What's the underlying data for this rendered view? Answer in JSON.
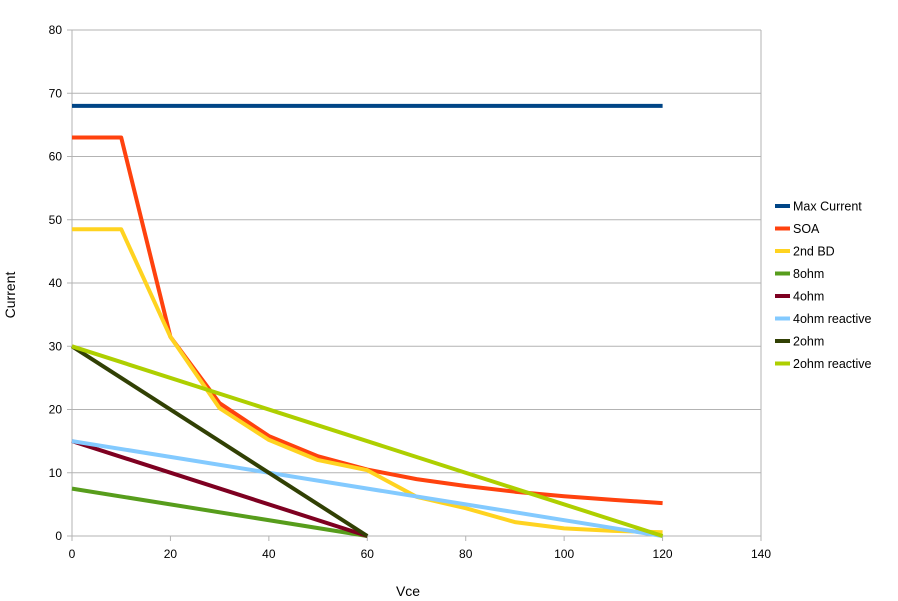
{
  "chart_data": {
    "type": "line",
    "title": "",
    "xlabel": "Vce",
    "ylabel": "Current",
    "xlim": [
      0,
      140
    ],
    "ylim": [
      0,
      80
    ],
    "x_ticks": [
      0,
      20,
      40,
      60,
      80,
      100,
      120,
      140
    ],
    "y_ticks": [
      0,
      10,
      20,
      30,
      40,
      50,
      60,
      70,
      80
    ],
    "grid": "horizontal",
    "legend_position": "right",
    "series": [
      {
        "name": "Max Current",
        "color": "#004586",
        "points": [
          [
            0,
            68
          ],
          [
            120,
            68
          ]
        ]
      },
      {
        "name": "SOA",
        "color": "#ff420e",
        "points": [
          [
            0,
            63
          ],
          [
            10,
            63
          ],
          [
            20,
            31.5
          ],
          [
            30,
            21
          ],
          [
            40,
            15.8
          ],
          [
            50,
            12.6
          ],
          [
            60,
            10.5
          ],
          [
            70,
            9
          ],
          [
            80,
            7.9
          ],
          [
            90,
            7
          ],
          [
            100,
            6.3
          ],
          [
            110,
            5.7
          ],
          [
            120,
            5.2
          ]
        ]
      },
      {
        "name": "2nd BD",
        "color": "#ffd320",
        "points": [
          [
            0,
            48.5
          ],
          [
            10,
            48.5
          ],
          [
            20,
            31.5
          ],
          [
            30,
            20.2
          ],
          [
            40,
            15.2
          ],
          [
            50,
            12
          ],
          [
            60,
            10.4
          ],
          [
            70,
            6.2
          ],
          [
            80,
            4.4
          ],
          [
            90,
            2.2
          ],
          [
            100,
            1.2
          ],
          [
            110,
            0.8
          ],
          [
            120,
            0.6
          ]
        ]
      },
      {
        "name": "8ohm",
        "color": "#579d1c",
        "points": [
          [
            0,
            7.5
          ],
          [
            60,
            0
          ]
        ]
      },
      {
        "name": "4ohm",
        "color": "#7e0021",
        "points": [
          [
            0,
            15
          ],
          [
            60,
            0
          ]
        ]
      },
      {
        "name": "4ohm reactive",
        "color": "#83caff",
        "points": [
          [
            0,
            15
          ],
          [
            120,
            0
          ]
        ]
      },
      {
        "name": "2ohm",
        "color": "#314004",
        "points": [
          [
            0,
            30
          ],
          [
            60,
            0
          ]
        ]
      },
      {
        "name": "2ohm reactive",
        "color": "#aecf00",
        "points": [
          [
            0,
            30
          ],
          [
            120,
            0
          ]
        ]
      }
    ]
  }
}
